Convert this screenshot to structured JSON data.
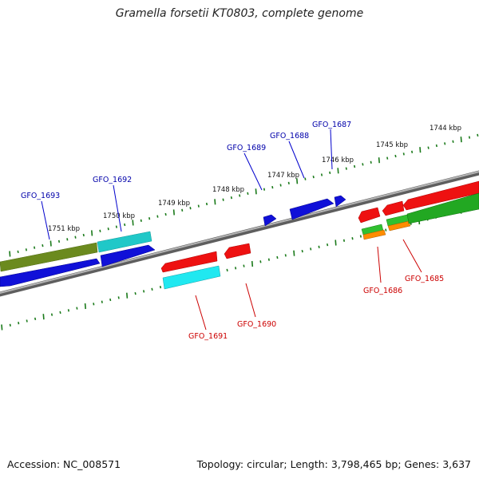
{
  "title": "Gramella forsetii KT0803, complete genome",
  "footer": {
    "accession": "Accession: NC_008571",
    "summary": "Topology: circular; Length: 3,798,465 bp; Genes: 3,637"
  },
  "colors": {
    "backbone": "#8a8a8a",
    "ticks": "#1a7a1a",
    "forward_label": "#0000aa",
    "reverse_label": "#cc0000"
  },
  "kbp_ticks": [
    "1751 kbp",
    "1750 kbp",
    "1749 kbp",
    "1748 kbp",
    "1747 kbp",
    "1746 kbp",
    "1745 kbp",
    "1744 kbp"
  ],
  "gene_labels": {
    "GFO_1693": "GFO_1693",
    "GFO_1692": "GFO_1692",
    "GFO_1689": "GFO_1689",
    "GFO_1688": "GFO_1688",
    "GFO_1687": "GFO_1687",
    "GFO_1691": "GFO_1691",
    "GFO_1690": "GFO_1690",
    "GFO_1686": "GFO_1686",
    "GFO_1685": "GFO_1685"
  }
}
